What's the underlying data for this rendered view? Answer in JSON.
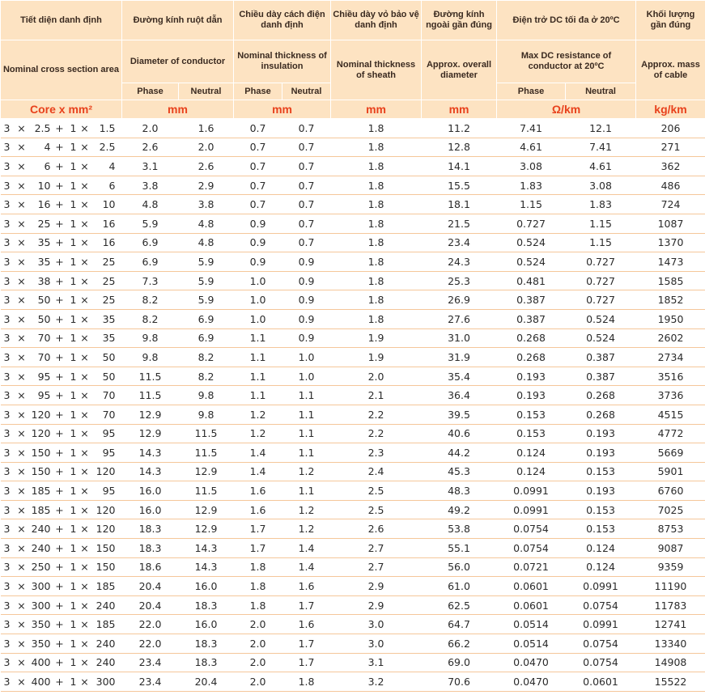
{
  "header": {
    "cross_section_vn": "Tiết diện danh định",
    "cross_section_en": "Nominal cross section area",
    "cross_section_unit": "Core x mm²",
    "diameter_vn": "Đường kính ruột dẫn",
    "diameter_en": "Diameter of conductor",
    "diameter_unit": "mm",
    "insulation_vn": "Chiều dày cách điện danh định",
    "insulation_en": "Nominal thickness of insulation",
    "insulation_unit": "mm",
    "sheath_vn": "Chiều dày vỏ bảo vệ danh định",
    "sheath_en": "Nominal thickness of sheath",
    "sheath_unit": "mm",
    "overall_vn": "Đường kính ngoài gần đúng",
    "overall_en": "Approx. overall diameter",
    "overall_unit": "mm",
    "resistance_vn": "Điện trở DC tối đa ở 20ºC",
    "resistance_en": "Max DC resistance of conductor at 20ºC",
    "resistance_unit": "Ω/km",
    "mass_vn": "Khối lượng gần đúng",
    "mass_en": "Approx. mass of cable",
    "mass_unit": "kg/km",
    "phase": "Phase",
    "neutral": "Neutral"
  },
  "rows": [
    {
      "a": "3",
      "b": "2.5",
      "c": "1",
      "d": "1.5",
      "dp": "2.0",
      "dn": "1.6",
      "ip": "0.7",
      "in": "0.7",
      "sh": "1.8",
      "od": "11.2",
      "rp": "7.41",
      "rn": "12.1",
      "m": "206"
    },
    {
      "a": "3",
      "b": "4",
      "c": "1",
      "d": "2.5",
      "dp": "2.6",
      "dn": "2.0",
      "ip": "0.7",
      "in": "0.7",
      "sh": "1.8",
      "od": "12.8",
      "rp": "4.61",
      "rn": "7.41",
      "m": "271"
    },
    {
      "a": "3",
      "b": "6",
      "c": "1",
      "d": "4",
      "dp": "3.1",
      "dn": "2.6",
      "ip": "0.7",
      "in": "0.7",
      "sh": "1.8",
      "od": "14.1",
      "rp": "3.08",
      "rn": "4.61",
      "m": "362"
    },
    {
      "a": "3",
      "b": "10",
      "c": "1",
      "d": "6",
      "dp": "3.8",
      "dn": "2.9",
      "ip": "0.7",
      "in": "0.7",
      "sh": "1.8",
      "od": "15.5",
      "rp": "1.83",
      "rn": "3.08",
      "m": "486"
    },
    {
      "a": "3",
      "b": "16",
      "c": "1",
      "d": "10",
      "dp": "4.8",
      "dn": "3.8",
      "ip": "0.7",
      "in": "0.7",
      "sh": "1.8",
      "od": "18.1",
      "rp": "1.15",
      "rn": "1.83",
      "m": "724"
    },
    {
      "a": "3",
      "b": "25",
      "c": "1",
      "d": "16",
      "dp": "5.9",
      "dn": "4.8",
      "ip": "0.9",
      "in": "0.7",
      "sh": "1.8",
      "od": "21.5",
      "rp": "0.727",
      "rn": "1.15",
      "m": "1087"
    },
    {
      "a": "3",
      "b": "35",
      "c": "1",
      "d": "16",
      "dp": "6.9",
      "dn": "4.8",
      "ip": "0.9",
      "in": "0.7",
      "sh": "1.8",
      "od": "23.4",
      "rp": "0.524",
      "rn": "1.15",
      "m": "1370"
    },
    {
      "a": "3",
      "b": "35",
      "c": "1",
      "d": "25",
      "dp": "6.9",
      "dn": "5.9",
      "ip": "0.9",
      "in": "0.9",
      "sh": "1.8",
      "od": "24.3",
      "rp": "0.524",
      "rn": "0.727",
      "m": "1473"
    },
    {
      "a": "3",
      "b": "38",
      "c": "1",
      "d": "25",
      "dp": "7.3",
      "dn": "5.9",
      "ip": "1.0",
      "in": "0.9",
      "sh": "1.8",
      "od": "25.3",
      "rp": "0.481",
      "rn": "0.727",
      "m": "1585"
    },
    {
      "a": "3",
      "b": "50",
      "c": "1",
      "d": "25",
      "dp": "8.2",
      "dn": "5.9",
      "ip": "1.0",
      "in": "0.9",
      "sh": "1.8",
      "od": "26.9",
      "rp": "0.387",
      "rn": "0.727",
      "m": "1852"
    },
    {
      "a": "3",
      "b": "50",
      "c": "1",
      "d": "35",
      "dp": "8.2",
      "dn": "6.9",
      "ip": "1.0",
      "in": "0.9",
      "sh": "1.8",
      "od": "27.6",
      "rp": "0.387",
      "rn": "0.524",
      "m": "1950"
    },
    {
      "a": "3",
      "b": "70",
      "c": "1",
      "d": "35",
      "dp": "9.8",
      "dn": "6.9",
      "ip": "1.1",
      "in": "0.9",
      "sh": "1.9",
      "od": "31.0",
      "rp": "0.268",
      "rn": "0.524",
      "m": "2602"
    },
    {
      "a": "3",
      "b": "70",
      "c": "1",
      "d": "50",
      "dp": "9.8",
      "dn": "8.2",
      "ip": "1.1",
      "in": "1.0",
      "sh": "1.9",
      "od": "31.9",
      "rp": "0.268",
      "rn": "0.387",
      "m": "2734"
    },
    {
      "a": "3",
      "b": "95",
      "c": "1",
      "d": "50",
      "dp": "11.5",
      "dn": "8.2",
      "ip": "1.1",
      "in": "1.0",
      "sh": "2.0",
      "od": "35.4",
      "rp": "0.193",
      "rn": "0.387",
      "m": "3516"
    },
    {
      "a": "3",
      "b": "95",
      "c": "1",
      "d": "70",
      "dp": "11.5",
      "dn": "9.8",
      "ip": "1.1",
      "in": "1.1",
      "sh": "2.1",
      "od": "36.4",
      "rp": "0.193",
      "rn": "0.268",
      "m": "3736"
    },
    {
      "a": "3",
      "b": "120",
      "c": "1",
      "d": "70",
      "dp": "12.9",
      "dn": "9.8",
      "ip": "1.2",
      "in": "1.1",
      "sh": "2.2",
      "od": "39.5",
      "rp": "0.153",
      "rn": "0.268",
      "m": "4515"
    },
    {
      "a": "3",
      "b": "120",
      "c": "1",
      "d": "95",
      "dp": "12.9",
      "dn": "11.5",
      "ip": "1.2",
      "in": "1.1",
      "sh": "2.2",
      "od": "40.6",
      "rp": "0.153",
      "rn": "0.193",
      "m": "4772"
    },
    {
      "a": "3",
      "b": "150",
      "c": "1",
      "d": "95",
      "dp": "14.3",
      "dn": "11.5",
      "ip": "1.4",
      "in": "1.1",
      "sh": "2.3",
      "od": "44.2",
      "rp": "0.124",
      "rn": "0.193",
      "m": "5669"
    },
    {
      "a": "3",
      "b": "150",
      "c": "1",
      "d": "120",
      "dp": "14.3",
      "dn": "12.9",
      "ip": "1.4",
      "in": "1.2",
      "sh": "2.4",
      "od": "45.3",
      "rp": "0.124",
      "rn": "0.153",
      "m": "5901"
    },
    {
      "a": "3",
      "b": "185",
      "c": "1",
      "d": "95",
      "dp": "16.0",
      "dn": "11.5",
      "ip": "1.6",
      "in": "1.1",
      "sh": "2.5",
      "od": "48.3",
      "rp": "0.0991",
      "rn": "0.193",
      "m": "6760"
    },
    {
      "a": "3",
      "b": "185",
      "c": "1",
      "d": "120",
      "dp": "16.0",
      "dn": "12.9",
      "ip": "1.6",
      "in": "1.2",
      "sh": "2.5",
      "od": "49.2",
      "rp": "0.0991",
      "rn": "0.153",
      "m": "7025"
    },
    {
      "a": "3",
      "b": "240",
      "c": "1",
      "d": "120",
      "dp": "18.3",
      "dn": "12.9",
      "ip": "1.7",
      "in": "1.2",
      "sh": "2.6",
      "od": "53.8",
      "rp": "0.0754",
      "rn": "0.153",
      "m": "8753"
    },
    {
      "a": "3",
      "b": "240",
      "c": "1",
      "d": "150",
      "dp": "18.3",
      "dn": "14.3",
      "ip": "1.7",
      "in": "1.4",
      "sh": "2.7",
      "od": "55.1",
      "rp": "0.0754",
      "rn": "0.124",
      "m": "9087"
    },
    {
      "a": "3",
      "b": "250",
      "c": "1",
      "d": "150",
      "dp": "18.6",
      "dn": "14.3",
      "ip": "1.8",
      "in": "1.4",
      "sh": "2.7",
      "od": "56.0",
      "rp": "0.0721",
      "rn": "0.124",
      "m": "9359"
    },
    {
      "a": "3",
      "b": "300",
      "c": "1",
      "d": "185",
      "dp": "20.4",
      "dn": "16.0",
      "ip": "1.8",
      "in": "1.6",
      "sh": "2.9",
      "od": "61.0",
      "rp": "0.0601",
      "rn": "0.0991",
      "m": "11190"
    },
    {
      "a": "3",
      "b": "300",
      "c": "1",
      "d": "240",
      "dp": "20.4",
      "dn": "18.3",
      "ip": "1.8",
      "in": "1.7",
      "sh": "2.9",
      "od": "62.5",
      "rp": "0.0601",
      "rn": "0.0754",
      "m": "11783"
    },
    {
      "a": "3",
      "b": "350",
      "c": "1",
      "d": "185",
      "dp": "22.0",
      "dn": "16.0",
      "ip": "2.0",
      "in": "1.6",
      "sh": "3.0",
      "od": "64.7",
      "rp": "0.0514",
      "rn": "0.0991",
      "m": "12741"
    },
    {
      "a": "3",
      "b": "350",
      "c": "1",
      "d": "240",
      "dp": "22.0",
      "dn": "18.3",
      "ip": "2.0",
      "in": "1.7",
      "sh": "3.0",
      "od": "66.2",
      "rp": "0.0514",
      "rn": "0.0754",
      "m": "13340"
    },
    {
      "a": "3",
      "b": "400",
      "c": "1",
      "d": "240",
      "dp": "23.4",
      "dn": "18.3",
      "ip": "2.0",
      "in": "1.7",
      "sh": "3.1",
      "od": "69.0",
      "rp": "0.0470",
      "rn": "0.0754",
      "m": "14908"
    },
    {
      "a": "3",
      "b": "400",
      "c": "1",
      "d": "300",
      "dp": "23.4",
      "dn": "20.4",
      "ip": "2.0",
      "in": "1.8",
      "sh": "3.2",
      "od": "70.6",
      "rp": "0.0470",
      "rn": "0.0601",
      "m": "15522"
    }
  ]
}
